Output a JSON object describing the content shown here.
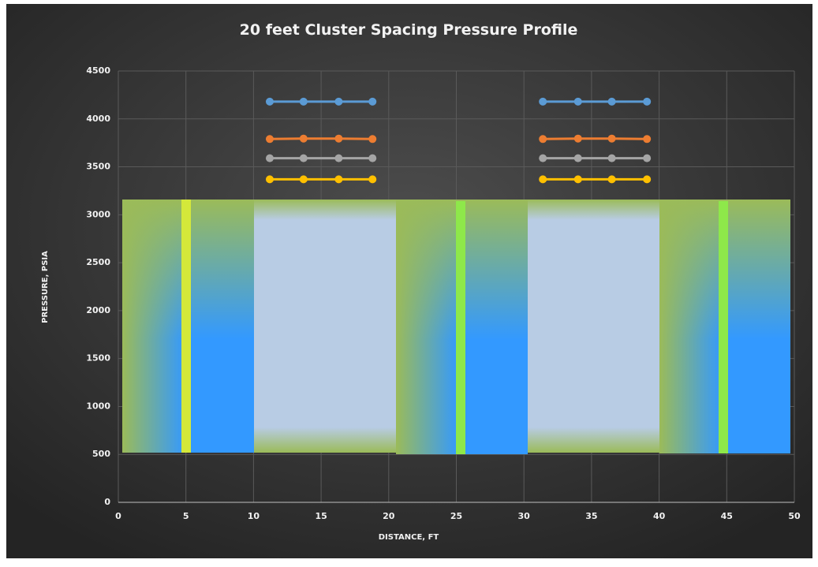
{
  "chart_data": {
    "type": "line",
    "title": "20 feet Cluster Spacing Pressure Profile",
    "x_label": "DISTANCE, FT",
    "y_label": "PRESSURE, PSIA",
    "x": [
      11.2,
      13.7,
      16.3,
      18.8,
      31.4,
      34.0,
      36.5,
      39.1
    ],
    "series": [
      {
        "color": "#5b9bd5",
        "values": [
          4180,
          4180,
          4180,
          4180,
          4180,
          4180,
          4180,
          4180
        ]
      },
      {
        "color": "#ed7d31",
        "values": [
          3790,
          3795,
          3795,
          3790,
          3790,
          3795,
          3795,
          3790
        ]
      },
      {
        "color": "#a5a5a5",
        "values": [
          3590,
          3590,
          3590,
          3590,
          3590,
          3590,
          3590,
          3590
        ]
      },
      {
        "color": "#ffc000",
        "values": [
          3370,
          3370,
          3370,
          3370,
          3370,
          3370,
          3370,
          3370
        ]
      }
    ],
    "xlim": [
      0,
      50
    ],
    "xticks": [
      0,
      5,
      10,
      15,
      20,
      25,
      30,
      35,
      40,
      45,
      50
    ],
    "ylim": [
      0,
      4500
    ],
    "yticks": [
      0,
      500,
      1000,
      1500,
      2000,
      2500,
      3000,
      3500,
      4000,
      4500
    ],
    "grid": true
  }
}
